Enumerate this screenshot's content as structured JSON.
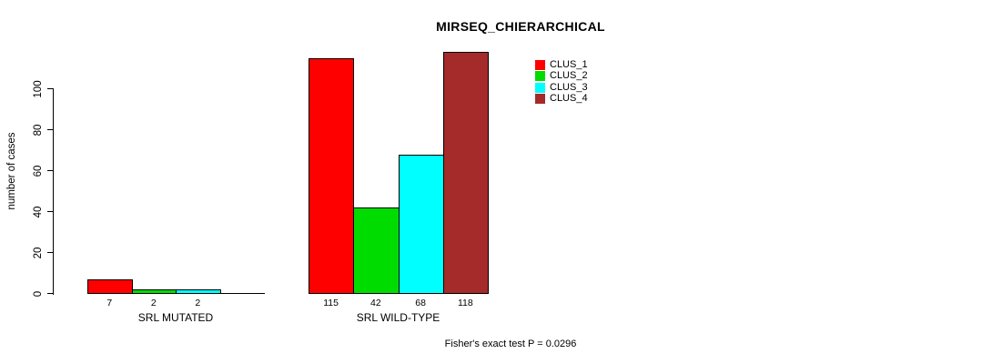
{
  "chart_data": {
    "type": "bar",
    "title": "MIRSEQ_CHIERARCHICAL",
    "ylabel": "number of cases",
    "xlabel": "",
    "footer": "Fisher's exact test P = 0.0296",
    "grid": false,
    "legend_position": "top-right",
    "yticks": [
      0,
      20,
      40,
      60,
      80,
      100
    ],
    "ylim": [
      0,
      120
    ],
    "categories": [
      "SRL MUTATED",
      "SRL WILD-TYPE"
    ],
    "series": [
      {
        "name": "CLUS_1",
        "color": "#FF0000",
        "values": [
          7,
          115
        ]
      },
      {
        "name": "CLUS_2",
        "color": "#00DC00",
        "values": [
          2,
          42
        ]
      },
      {
        "name": "CLUS_3",
        "color": "#00FFFF",
        "values": [
          2,
          68
        ]
      },
      {
        "name": "CLUS_4",
        "color": "#A52A2A",
        "values": [
          0,
          118
        ]
      }
    ],
    "bar_value_labels": [
      [
        "7",
        "2",
        "2",
        ""
      ],
      [
        "115",
        "42",
        "68",
        "118"
      ]
    ],
    "colors": {
      "axis": "#000000",
      "text": "#000000",
      "background": "#ffffff"
    }
  }
}
